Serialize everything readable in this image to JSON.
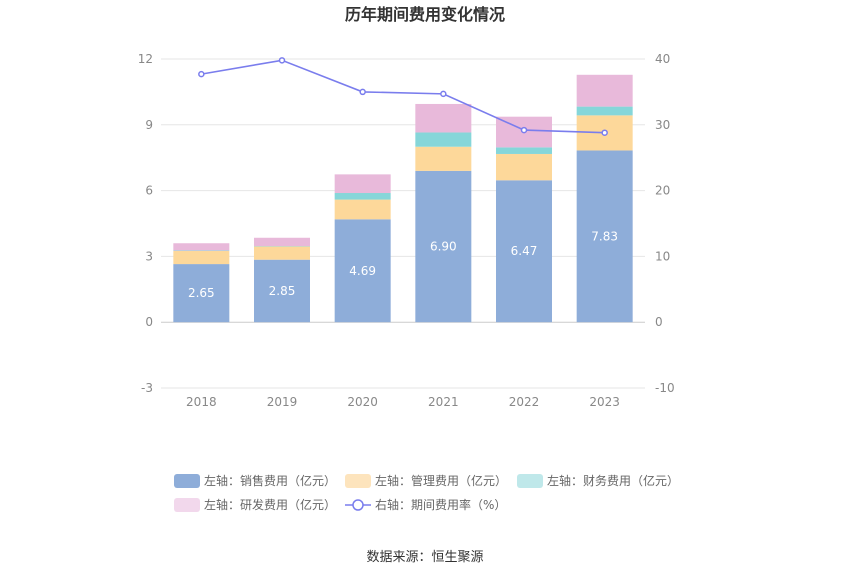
{
  "chart_data": {
    "type": "bar",
    "title": "历年期间费用变化情况",
    "categories": [
      "2018",
      "2019",
      "2020",
      "2021",
      "2022",
      "2023"
    ],
    "series": [
      {
        "name": "左轴：销售费用（亿元）",
        "axis": "left",
        "color": "#8eadd9",
        "values": [
          2.65,
          2.85,
          4.69,
          6.9,
          6.47,
          7.83
        ],
        "labels": [
          "2.65",
          "2.85",
          "4.69",
          "6.90",
          "6.47",
          "7.83"
        ]
      },
      {
        "name": "左轴：管理费用（亿元）",
        "axis": "left",
        "color": "#fdd89a",
        "values": [
          0.6,
          0.6,
          0.9,
          1.1,
          1.2,
          1.6
        ]
      },
      {
        "name": "左轴：财务费用（亿元）",
        "axis": "left",
        "color": "#86d6d9",
        "values": [
          0.02,
          0.02,
          0.3,
          0.65,
          0.3,
          0.4
        ]
      },
      {
        "name": "左轴：研发费用（亿元）",
        "axis": "left",
        "color": "#e8b9da",
        "values": [
          0.33,
          0.38,
          0.85,
          1.3,
          1.4,
          1.45
        ]
      },
      {
        "name": "右轴：期间费用率（%）",
        "axis": "right",
        "type": "line",
        "color": "#7a7ded",
        "values": [
          37.7,
          39.8,
          35.0,
          34.7,
          29.2,
          28.8
        ]
      }
    ],
    "left_axis": {
      "ticks": [
        "-3",
        "0",
        "3",
        "6",
        "9",
        "12"
      ],
      "ylim": [
        -3,
        12
      ]
    },
    "right_axis": {
      "ticks": [
        "-10",
        "0",
        "10",
        "20",
        "30",
        "40"
      ],
      "ylim": [
        -10,
        40
      ]
    },
    "grid": true,
    "legend_position": "bottom"
  },
  "source": "数据来源：恒生聚源"
}
